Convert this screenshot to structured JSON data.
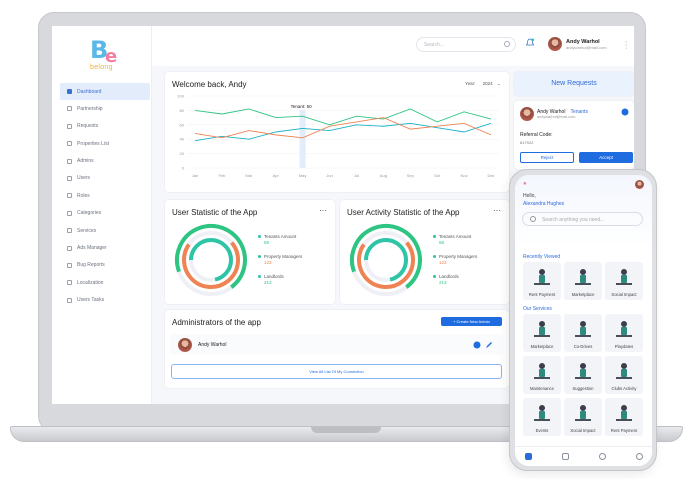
{
  "brand": {
    "logo_b": "B",
    "logo_e": "e",
    "logo_word": "belong"
  },
  "sidebar": {
    "items": [
      {
        "label": "Dashboard",
        "active": true
      },
      {
        "label": "Partnership"
      },
      {
        "label": "Requests"
      },
      {
        "label": "Properties List"
      },
      {
        "label": "Admins"
      },
      {
        "label": "Users"
      },
      {
        "label": "Roles"
      },
      {
        "label": "Categories"
      },
      {
        "label": "Services"
      },
      {
        "label": "Ads Manager"
      },
      {
        "label": "Bug Reports"
      },
      {
        "label": "Localization"
      },
      {
        "label": "Users Tasks"
      }
    ]
  },
  "topbar": {
    "search_placeholder": "Search...",
    "user_name": "Andy Warhol",
    "user_email": "andywarhol@mail.com"
  },
  "welcome": {
    "title": "Welcome back, Andy",
    "year_label": "Year:",
    "year_value": "2024",
    "tooltip_label": "Tenant:",
    "tooltip_value": "50"
  },
  "chart_data": {
    "type": "line",
    "categories": [
      "Jan",
      "Feb",
      "Mar",
      "Apr",
      "May",
      "Jun",
      "Jul",
      "Aug",
      "Sep",
      "Oct",
      "Nov",
      "Dec"
    ],
    "y_ticks": [
      0,
      20,
      40,
      60,
      80,
      100
    ],
    "ylim": [
      0,
      100
    ],
    "grid": true,
    "series": [
      {
        "color": "#2ec482",
        "values": [
          80,
          75,
          82,
          70,
          72,
          60,
          72,
          68,
          82,
          64,
          78,
          68
        ]
      },
      {
        "color": "#1bb1c9",
        "values": [
          38,
          44,
          40,
          50,
          55,
          52,
          60,
          58,
          62,
          56,
          50,
          62
        ]
      },
      {
        "color": "#f08354",
        "values": [
          48,
          42,
          52,
          46,
          42,
          58,
          64,
          70,
          54,
          58,
          62,
          46
        ]
      }
    ]
  },
  "user_stats": {
    "title": "User Statistic of the App",
    "legend": [
      {
        "label": "Tenants Amount",
        "value": "58"
      },
      {
        "label": "Property Managers",
        "value": "123"
      },
      {
        "label": "Landlords",
        "value": "213"
      }
    ]
  },
  "activity_stats": {
    "title": "User Activity Statistic of the App",
    "legend": [
      {
        "label": "Tenants Amount",
        "value": "58"
      },
      {
        "label": "Property Managers",
        "value": "123"
      },
      {
        "label": "Landlords",
        "value": "213"
      }
    ]
  },
  "admins": {
    "title": "Administrators of the app",
    "create_label": "+ Create New Admin",
    "admin_name": "Andy Warhol",
    "view_all_label": "View All List Of My Connection"
  },
  "requests": {
    "title": "New Requests",
    "name": "Andy Warhol",
    "role": "Tenants",
    "email": "andywarhol@mail.com",
    "referral_label": "Referral Code:",
    "referral_value": "817922",
    "reject_label": "Reject",
    "accept_label": "Accept"
  },
  "phone": {
    "greeting": "Hello,",
    "user_name": "Alexandra Hughes",
    "search_placeholder": "Search anything you need...",
    "recent_title": "Recently Viewed",
    "recent": [
      "Rent Payment",
      "Marketplace",
      "Social Impact"
    ],
    "services_title": "Our Services",
    "services": [
      "Marketplace",
      "Co-Drives",
      "Playdates",
      "Maintenance",
      "Suggestion",
      "Clubs Activity",
      "Events",
      "Social Impact",
      "Rent Payment"
    ]
  }
}
